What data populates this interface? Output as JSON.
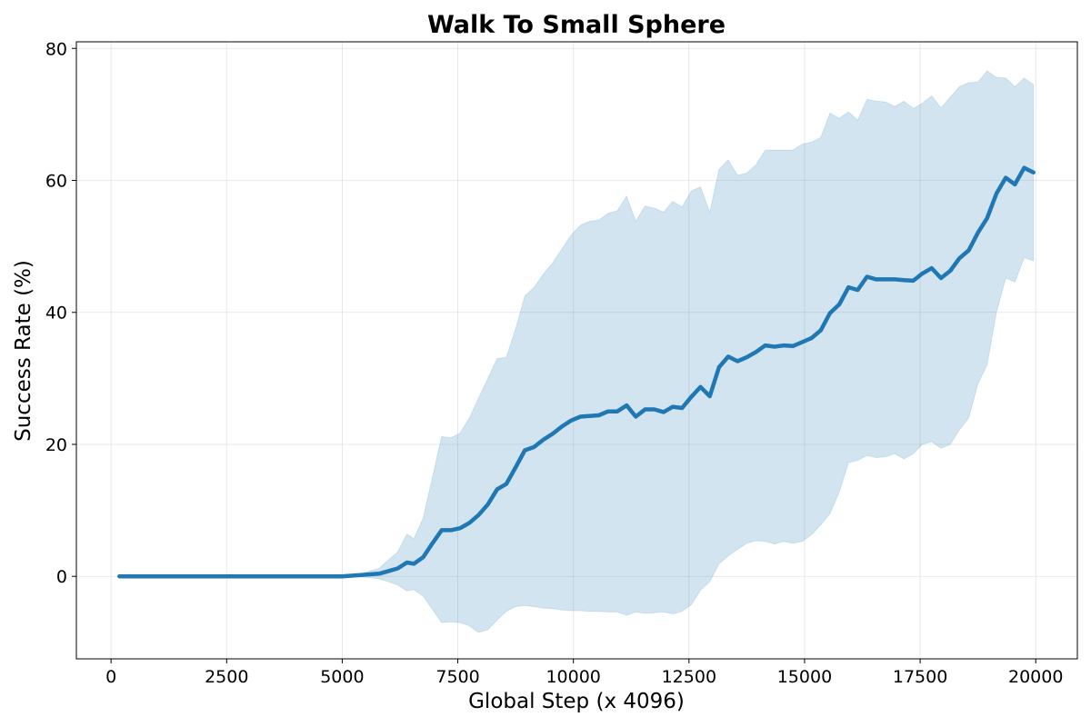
{
  "chart_data": {
    "type": "line",
    "title": "Walk To Small Sphere",
    "xlabel": "Global Step (x 4096)",
    "ylabel": "Success Rate (%)",
    "xlim": [
      -750,
      20900
    ],
    "ylim": [
      -12.5,
      81
    ],
    "xticks": [
      0,
      2500,
      5000,
      7500,
      10000,
      12500,
      15000,
      17500,
      20000
    ],
    "yticks": [
      0,
      20,
      40,
      60,
      80
    ],
    "grid": true,
    "colors": {
      "line": "#1f77b4",
      "band": "#1f77b4"
    },
    "series": [
      {
        "x": [
          180,
          2500,
          5000,
          5200,
          5400,
          5600,
          5800,
          6000,
          6200,
          6400,
          6550,
          6750,
          6950,
          7150,
          7350,
          7550,
          7750,
          7950,
          8150,
          8350,
          8550,
          8750,
          8950,
          9150,
          9350,
          9550,
          9750,
          9950,
          10150,
          10350,
          10550,
          10750,
          10950,
          11150,
          11350,
          11550,
          11750,
          11950,
          12150,
          12350,
          12550,
          12750,
          12950,
          13150,
          13350,
          13550,
          13750,
          13950,
          14150,
          14350,
          14550,
          14750,
          14950,
          15150,
          15350,
          15550,
          15750,
          15950,
          16150,
          16350,
          16550,
          16750,
          16950,
          17150,
          17350,
          17550,
          17750,
          17950,
          18150,
          18350,
          18550,
          18750,
          18950,
          19150,
          19350,
          19550,
          19750,
          19950
        ],
        "mean": [
          0,
          0,
          0,
          0.1,
          0.2,
          0.3,
          0.4,
          0.8,
          1.2,
          2.1,
          1.9,
          2.9,
          5.0,
          7.0,
          7.0,
          7.3,
          8.1,
          9.3,
          10.9,
          13.2,
          14.0,
          16.5,
          19.1,
          19.6,
          20.7,
          21.6,
          22.7,
          23.6,
          24.2,
          24.3,
          24.4,
          25.0,
          25.0,
          25.9,
          24.2,
          25.3,
          25.3,
          24.9,
          25.7,
          25.5,
          27.2,
          28.7,
          27.3,
          31.7,
          33.3,
          32.6,
          33.2,
          34.0,
          35.0,
          34.8,
          35.0,
          34.9,
          35.5,
          36.1,
          37.3,
          39.9,
          41.2,
          43.8,
          43.4,
          45.4,
          45.0,
          45.0,
          45.0,
          44.9,
          44.8,
          45.9,
          46.7,
          45.2,
          46.3,
          48.2,
          49.4,
          52.1,
          54.3,
          58.0,
          60.4,
          59.4,
          61.9,
          61.2
        ],
        "upper": [
          0,
          0,
          0,
          0.2,
          0.4,
          0.8,
          1.2,
          2.5,
          3.7,
          6.4,
          5.7,
          8.8,
          15.0,
          21.2,
          21.0,
          21.7,
          24.0,
          27.0,
          30.0,
          33.0,
          33.2,
          37.5,
          42.5,
          43.8,
          45.8,
          47.5,
          49.6,
          51.7,
          53.2,
          53.8,
          54.0,
          55.0,
          55.4,
          57.6,
          53.8,
          56.1,
          55.8,
          55.2,
          56.8,
          56.0,
          58.4,
          59.0,
          55.2,
          61.7,
          63.1,
          60.8,
          61.1,
          62.4,
          64.6,
          64.6,
          64.6,
          64.6,
          65.5,
          65.8,
          66.5,
          70.2,
          69.4,
          70.4,
          69.1,
          72.3,
          72.0,
          71.9,
          71.2,
          72.0,
          70.9,
          71.7,
          72.8,
          71.0,
          72.6,
          74.2,
          74.8,
          74.9,
          76.6,
          75.6,
          75.5,
          74.2,
          75.5,
          74.5
        ],
        "lower": [
          0,
          0,
          0,
          0,
          -0.1,
          -0.2,
          -0.4,
          -0.8,
          -1.3,
          -2.2,
          -2.0,
          -3.0,
          -5.0,
          -7.0,
          -6.9,
          -7.0,
          -7.5,
          -8.5,
          -8.1,
          -6.6,
          -5.3,
          -4.6,
          -4.4,
          -4.6,
          -4.8,
          -4.9,
          -5.1,
          -5.2,
          -5.2,
          -5.3,
          -5.3,
          -5.4,
          -5.4,
          -5.9,
          -5.4,
          -5.6,
          -5.5,
          -5.4,
          -5.7,
          -5.3,
          -4.3,
          -2.1,
          -0.8,
          1.9,
          3.1,
          4.1,
          5.0,
          5.4,
          5.3,
          4.9,
          5.3,
          5.0,
          5.3,
          6.3,
          7.8,
          9.5,
          12.8,
          17.2,
          17.6,
          18.3,
          18.0,
          18.1,
          18.6,
          17.8,
          18.6,
          20.0,
          20.4,
          19.4,
          20.0,
          22.2,
          24.0,
          29.2,
          32.1,
          40.0,
          45.2,
          44.6,
          48.3,
          47.8
        ]
      }
    ]
  }
}
